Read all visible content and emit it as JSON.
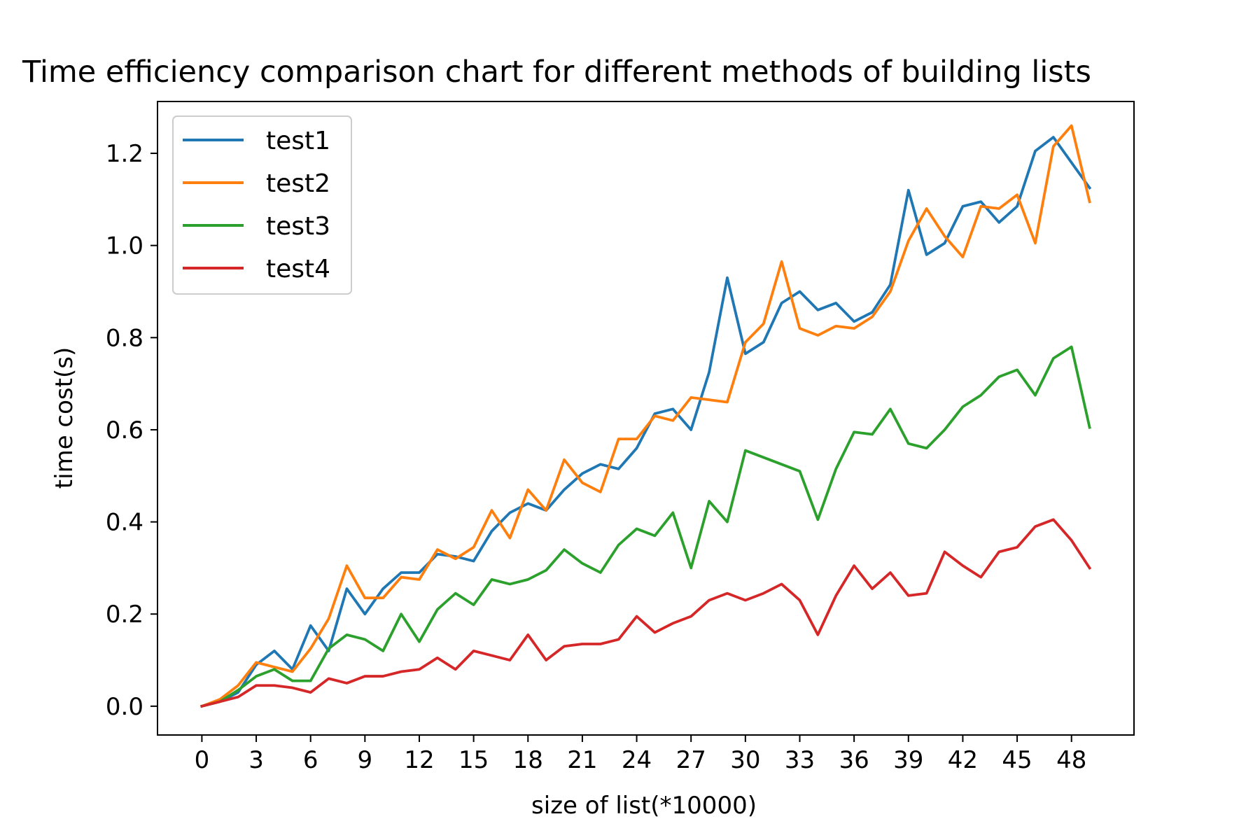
{
  "chart_data": {
    "type": "line",
    "title": "Time efficiency comparison chart for different methods of building lists",
    "xlabel": "size of list(*10000)",
    "ylabel": "time cost(s)",
    "xlim": [
      -2.45,
      51.45
    ],
    "ylim": [
      -0.0625,
      1.3125
    ],
    "xticks": [
      0,
      3,
      6,
      9,
      12,
      15,
      18,
      21,
      24,
      27,
      30,
      33,
      36,
      39,
      42,
      45,
      48
    ],
    "yticks": [
      0.0,
      0.2,
      0.4,
      0.6,
      0.8,
      1.0,
      1.2
    ],
    "ytick_labels": [
      "0.0",
      "0.2",
      "0.4",
      "0.6",
      "0.8",
      "1.0",
      "1.2"
    ],
    "grid": false,
    "legend_position": "upper-left",
    "x": [
      0,
      1,
      2,
      3,
      4,
      5,
      6,
      7,
      8,
      9,
      10,
      11,
      12,
      13,
      14,
      15,
      16,
      17,
      18,
      19,
      20,
      21,
      22,
      23,
      24,
      25,
      26,
      27,
      28,
      29,
      30,
      31,
      32,
      33,
      34,
      35,
      36,
      37,
      38,
      39,
      40,
      41,
      42,
      43,
      44,
      45,
      46,
      47,
      48,
      49
    ],
    "series": [
      {
        "name": "test1",
        "color": "#1f77b4",
        "values": [
          0.0,
          0.01,
          0.03,
          0.09,
          0.12,
          0.08,
          0.175,
          0.12,
          0.255,
          0.2,
          0.255,
          0.29,
          0.29,
          0.33,
          0.325,
          0.315,
          0.38,
          0.42,
          0.44,
          0.425,
          0.47,
          0.505,
          0.525,
          0.515,
          0.56,
          0.635,
          0.645,
          0.6,
          0.725,
          0.93,
          0.765,
          0.79,
          0.875,
          0.9,
          0.86,
          0.875,
          0.835,
          0.855,
          0.915,
          1.12,
          0.98,
          1.005,
          1.085,
          1.095,
          1.05,
          1.085,
          1.205,
          1.235,
          1.18,
          1.125
        ]
      },
      {
        "name": "test2",
        "color": "#ff7f0e",
        "values": [
          0.0,
          0.015,
          0.045,
          0.095,
          0.085,
          0.075,
          0.125,
          0.19,
          0.305,
          0.235,
          0.235,
          0.28,
          0.275,
          0.34,
          0.32,
          0.345,
          0.425,
          0.365,
          0.47,
          0.425,
          0.535,
          0.485,
          0.465,
          0.58,
          0.58,
          0.63,
          0.62,
          0.67,
          0.665,
          0.66,
          0.79,
          0.83,
          0.965,
          0.82,
          0.805,
          0.825,
          0.82,
          0.845,
          0.9,
          1.01,
          1.08,
          1.02,
          0.975,
          1.085,
          1.08,
          1.11,
          1.005,
          1.215,
          1.26,
          1.095
        ]
      },
      {
        "name": "test3",
        "color": "#2ca02c",
        "values": [
          0.0,
          0.01,
          0.035,
          0.065,
          0.08,
          0.055,
          0.055,
          0.125,
          0.155,
          0.145,
          0.12,
          0.2,
          0.14,
          0.21,
          0.245,
          0.22,
          0.275,
          0.265,
          0.275,
          0.295,
          0.34,
          0.31,
          0.29,
          0.35,
          0.385,
          0.37,
          0.42,
          0.3,
          0.445,
          0.4,
          0.555,
          0.54,
          0.525,
          0.51,
          0.405,
          0.515,
          0.595,
          0.59,
          0.645,
          0.57,
          0.56,
          0.6,
          0.65,
          0.675,
          0.715,
          0.73,
          0.675,
          0.755,
          0.78,
          0.605
        ]
      },
      {
        "name": "test4",
        "color": "#d62728",
        "values": [
          0.0,
          0.01,
          0.02,
          0.045,
          0.045,
          0.04,
          0.03,
          0.06,
          0.05,
          0.065,
          0.065,
          0.075,
          0.08,
          0.105,
          0.08,
          0.12,
          0.11,
          0.1,
          0.155,
          0.1,
          0.13,
          0.135,
          0.135,
          0.145,
          0.195,
          0.16,
          0.18,
          0.195,
          0.23,
          0.245,
          0.23,
          0.245,
          0.265,
          0.23,
          0.155,
          0.24,
          0.305,
          0.255,
          0.29,
          0.24,
          0.245,
          0.335,
          0.305,
          0.28,
          0.335,
          0.345,
          0.39,
          0.405,
          0.36,
          0.3
        ]
      }
    ]
  }
}
